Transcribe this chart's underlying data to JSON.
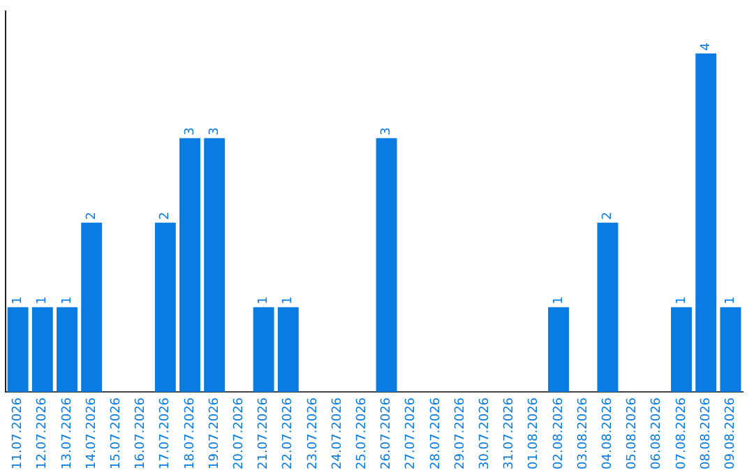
{
  "chart_data": {
    "type": "bar",
    "categories": [
      "11.07.2026",
      "12.07.2026",
      "13.07.2026",
      "14.07.2026",
      "15.07.2026",
      "16.07.2026",
      "17.07.2026",
      "18.07.2026",
      "19.07.2026",
      "20.07.2026",
      "21.07.2026",
      "22.07.2026",
      "23.07.2026",
      "24.07.2026",
      "25.07.2026",
      "26.07.2026",
      "27.07.2026",
      "28.07.2026",
      "29.07.2026",
      "30.07.2026",
      "31.07.2026",
      "01.08.2026",
      "02.08.2026",
      "03.08.2026",
      "04.08.2026",
      "05.08.2026",
      "06.08.2026",
      "07.08.2026",
      "08.08.2026",
      "09.08.2026"
    ],
    "values": [
      1,
      1,
      1,
      2,
      0,
      0,
      2,
      3,
      3,
      0,
      1,
      1,
      0,
      0,
      0,
      3,
      0,
      0,
      0,
      0,
      0,
      0,
      1,
      0,
      2,
      0,
      0,
      1,
      4,
      1
    ],
    "value_labels": [
      "1",
      "1",
      "1",
      "2",
      null,
      null,
      "2",
      "3",
      "3",
      null,
      "1",
      "1",
      null,
      null,
      null,
      "3",
      null,
      null,
      null,
      null,
      null,
      null,
      "1",
      null,
      "2",
      null,
      null,
      "1",
      "4",
      "1"
    ],
    "color": "#0a7be0",
    "legend": false,
    "grid": false
  }
}
